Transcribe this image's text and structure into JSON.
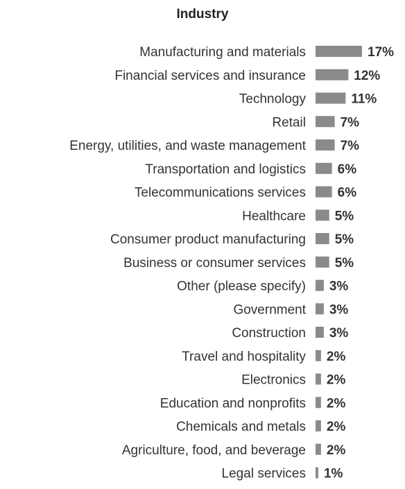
{
  "chart_data": {
    "type": "bar",
    "orientation": "horizontal",
    "title": "Industry",
    "xlabel": "",
    "ylabel": "",
    "value_suffix": "%",
    "xlim": [
      0,
      17
    ],
    "grid": false,
    "bar_color": "#8a8a8a",
    "categories": [
      "Manufacturing and materials",
      "Financial services and insurance",
      "Technology",
      "Retail",
      "Energy, utilities, and waste management",
      "Transportation and logistics",
      "Telecommunications services",
      "Healthcare",
      "Consumer product manufacturing",
      "Business or consumer services",
      "Other (please specify)",
      "Government",
      "Construction",
      "Travel and hospitality",
      "Electronics",
      "Education and nonprofits",
      "Chemicals and metals",
      "Agriculture, food, and beverage",
      "Legal services"
    ],
    "values": [
      17,
      12,
      11,
      7,
      7,
      6,
      6,
      5,
      5,
      5,
      3,
      3,
      3,
      2,
      2,
      2,
      2,
      2,
      1
    ],
    "value_labels": [
      "17%",
      "12%",
      "11%",
      "7%",
      "7%",
      "6%",
      "6%",
      "5%",
      "5%",
      "5%",
      "3%",
      "3%",
      "3%",
      "2%",
      "2%",
      "2%",
      "2%",
      "2%",
      "1%"
    ]
  }
}
